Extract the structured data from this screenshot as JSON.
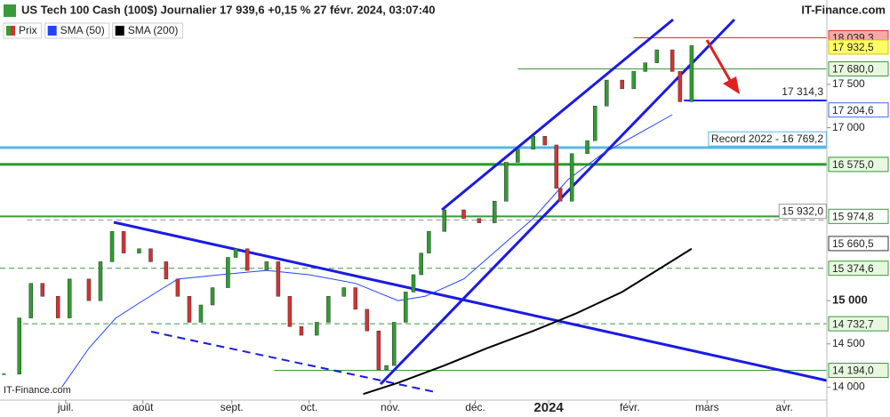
{
  "chart_data": {
    "type": "candlestick",
    "title": "US Tech 100 Cash (100$) Journalier 17 939,6 +0,15 % 27 févr. 2024, 03:07:40",
    "source": "IT-Finance.com",
    "watermark": "IT-Finance.com",
    "xlim": [
      0,
      214
    ],
    "xticks": [
      {
        "value": 17,
        "label": "juil."
      },
      {
        "value": 37,
        "label": "août"
      },
      {
        "value": 60,
        "label": "sept."
      },
      {
        "value": 80,
        "label": "oct."
      },
      {
        "value": 101,
        "label": "nov."
      },
      {
        "value": 123,
        "label": "déc."
      },
      {
        "value": 142,
        "label": "2024",
        "bold": true
      },
      {
        "value": 163,
        "label": "févr."
      },
      {
        "value": 183,
        "label": "mars"
      },
      {
        "value": 203,
        "label": "avr."
      }
    ],
    "ylim": [
      13850,
      18250
    ],
    "yticks": [
      {
        "value": 14000,
        "label": "14 000"
      },
      {
        "value": 14500,
        "label": "14 500"
      },
      {
        "value": 15000,
        "label": "15 000",
        "bold": true
      },
      {
        "value": 17000,
        "label": "17 000"
      },
      {
        "value": 17500,
        "label": "17 500"
      }
    ],
    "series": [
      {
        "name": "Prix",
        "color": "#2e9e2e",
        "down_color": "#d83030",
        "x": [
          1,
          5,
          8,
          11,
          15,
          18,
          23,
          26,
          29,
          32,
          36,
          39,
          43,
          46,
          49,
          52,
          55,
          59,
          61,
          64,
          69,
          72,
          75,
          78,
          82,
          85,
          89,
          92,
          95,
          98,
          100,
          102,
          105,
          107,
          109,
          111,
          115,
          120,
          124,
          128,
          131,
          134,
          138,
          141,
          144,
          145,
          148,
          152,
          154,
          157,
          161,
          164,
          167,
          170,
          174,
          176,
          179
        ],
        "values": [
          14150,
          14800,
          15200,
          15050,
          14800,
          15250,
          15000,
          15450,
          15800,
          15550,
          15600,
          15450,
          15250,
          15050,
          14750,
          14950,
          15150,
          15500,
          15600,
          15350,
          15450,
          15050,
          14700,
          14600,
          14750,
          15050,
          15150,
          14900,
          14650,
          14200,
          14250,
          14750,
          15100,
          15300,
          15550,
          15800,
          16050,
          15950,
          15900,
          16150,
          16600,
          16750,
          16900,
          16800,
          16300,
          16150,
          16700,
          16850,
          17250,
          17550,
          17450,
          17650,
          17750,
          17900,
          17650,
          17300,
          17950
        ]
      },
      {
        "name": "SMA (50)",
        "color": "#2244ff",
        "x": [
          16,
          23,
          30,
          37,
          46,
          57,
          69,
          80,
          92,
          103,
          110,
          120,
          129,
          138,
          147,
          156,
          166,
          174
        ],
        "values": [
          14000,
          14450,
          14800,
          15000,
          15250,
          15300,
          15350,
          15300,
          15200,
          15000,
          15050,
          15250,
          15600,
          15950,
          16400,
          16700,
          16950,
          17150
        ]
      },
      {
        "name": "SMA (200)",
        "color": "#000000",
        "x": [
          94,
          103,
          115,
          126,
          138,
          149,
          161,
          170,
          179
        ],
        "values": [
          13920,
          14050,
          14250,
          14450,
          14650,
          14850,
          15100,
          15350,
          15600
        ]
      }
    ],
    "levels": [
      {
        "value": 18039.3,
        "label": "18 039,3",
        "color": "#e03030",
        "fill": "#f7a8a8",
        "line": "solid",
        "x_from": 164
      },
      {
        "value": 17932.5,
        "label": "17 932,5",
        "color": "#d8c000",
        "fill": "#ffff66",
        "line": "none"
      },
      {
        "value": 17680,
        "label": "17 680,0",
        "color": "#3a9a3a",
        "fill": "#e8f8e0",
        "line": "solid",
        "x_from": 134
      },
      {
        "value": 17314.3,
        "label": "17 314,3",
        "color": "#1a1aff",
        "line": "solid",
        "x_from": 177,
        "inside": true,
        "width": 2
      },
      {
        "value": 17204.6,
        "label": "17 204,6",
        "color": "#4466ff",
        "fill": "#ffffff",
        "line": "none"
      },
      {
        "value": 16769.2,
        "label": "Record 2022 - 16 769,2",
        "color": "#55b8e8",
        "line": "solid",
        "x_from": 0,
        "inside": true,
        "width": 3
      },
      {
        "value": 16575,
        "label": "16 575,0",
        "color": "#2a9a2a",
        "fill": "#e8f8e0",
        "line": "solid",
        "width": 3
      },
      {
        "value": 15974.8,
        "label": "15 974,8",
        "color": "#3a9a3a",
        "fill": "#ffffff",
        "line": "solid",
        "width": 2
      },
      {
        "value": 15932,
        "label": "15 932,0",
        "color": "#999999",
        "line": "dashed",
        "x_from": 7,
        "inside": true
      },
      {
        "value": 15660.5,
        "label": "15 660,5",
        "color": "#333333",
        "fill": "#ffffff",
        "line": "none"
      },
      {
        "value": 15374.6,
        "label": "15 374,6",
        "color": "#3a9a3a",
        "fill": "#e8f8e0",
        "line": "dashed"
      },
      {
        "value": 14732.7,
        "label": "14 732,7",
        "color": "#3a9a3a",
        "fill": "#e8f8e0",
        "line": "dashed",
        "x_from": 6
      },
      {
        "value": 14194,
        "label": "14 194,0",
        "color": "#3a9a3a",
        "fill": "#e8f8e0",
        "line": "solid",
        "x_from": 71
      }
    ]
  }
}
